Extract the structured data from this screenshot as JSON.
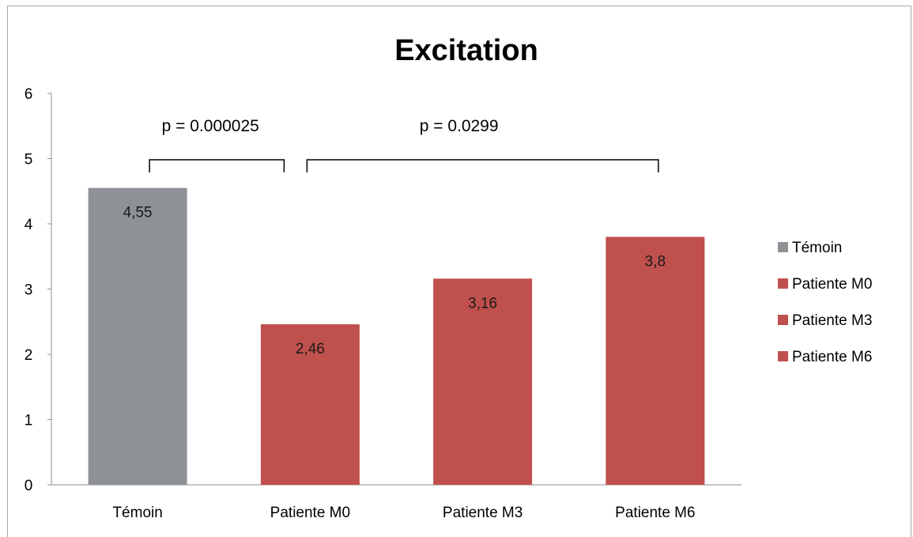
{
  "chart_data": {
    "type": "bar",
    "title": "Excitation",
    "categories": [
      "Témoin",
      "Patiente M0",
      "Patiente M3",
      "Patiente M6"
    ],
    "values": [
      4.55,
      2.46,
      3.16,
      3.8
    ],
    "data_labels": [
      "4,55",
      "2,46",
      "3,16",
      "3,8"
    ],
    "colors": [
      "#8e9196",
      "#c0504d",
      "#c0504d",
      "#c0504d"
    ],
    "ylim": [
      0,
      6
    ],
    "yticks": [
      0,
      1,
      2,
      3,
      4,
      5,
      6
    ],
    "grid": false,
    "legend_position": "right",
    "legend": [
      {
        "label": "Témoin",
        "color": "#8e9196"
      },
      {
        "label": "Patiente M0",
        "color": "#c0504d"
      },
      {
        "label": "Patiente M3",
        "color": "#c0504d"
      },
      {
        "label": "Patiente M6",
        "color": "#c0504d"
      }
    ],
    "annotations": [
      {
        "text": "p = 0.000025",
        "from_category": 0,
        "to_category": 1
      },
      {
        "text": "p = 0.0299",
        "from_category": 1,
        "to_category": 3
      }
    ]
  }
}
